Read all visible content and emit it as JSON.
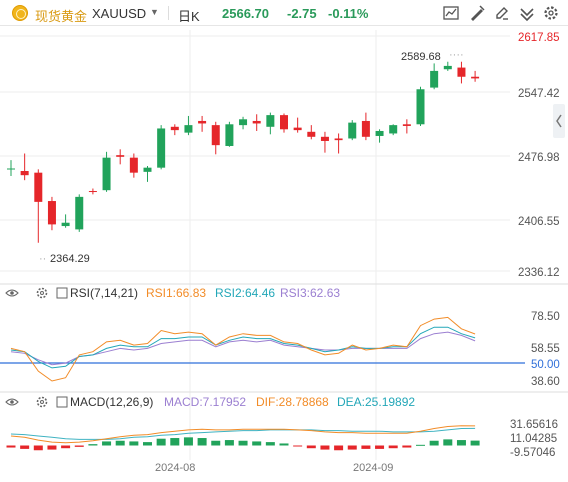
{
  "toolbar": {
    "name": "现货黄金",
    "symbol": "XAUUSD",
    "period": "日K",
    "price": "2566.70",
    "change": "-2.75",
    "change_pct": "-0.11%",
    "icons": [
      "indicator-icon",
      "draw-icon",
      "edit-icon",
      "compare-icon",
      "settings-icon"
    ]
  },
  "colors": {
    "up": "#21a35b",
    "down": "#e5262a",
    "rsi1": "#f28c28",
    "rsi2": "#23a7b8",
    "rsi3": "#9b7fd1",
    "macd": "#f28c28",
    "dif": "#3fb3c2",
    "price_label": "#e5262a",
    "midline": "#2f6fd9"
  },
  "price_axis": [
    "2617.85",
    "2547.42",
    "2476.98",
    "2406.55",
    "2336.12"
  ],
  "annotations": {
    "high": "2589.68",
    "low": "2364.29"
  },
  "rsi_panel": {
    "title": "RSI(7,14,21)",
    "rsi1": "RSI1:66.83",
    "rsi2": "RSI2:64.46",
    "rsi3": "RSI3:62.63",
    "axis": [
      "78.50",
      "58.55",
      "50.00",
      "38.60"
    ]
  },
  "macd_panel": {
    "title": "MACD(12,26,9)",
    "macd": "MACD:7.17952",
    "dif": "DIF:28.78868",
    "dea": "DEA:25.19892",
    "axis": [
      "31.65616",
      "11.04285",
      "-9.57046"
    ]
  },
  "date_axis": [
    "2024-08",
    "2024-09"
  ],
  "chart_data": {
    "type": "candlestick",
    "price_range": [
      2336.12,
      2617.85
    ],
    "candles": [
      {
        "o": 2458,
        "h": 2469,
        "l": 2450,
        "c": 2459
      },
      {
        "o": 2456,
        "h": 2477,
        "l": 2445,
        "c": 2451
      },
      {
        "o": 2454,
        "h": 2458,
        "l": 2370,
        "c": 2419
      },
      {
        "o": 2420,
        "h": 2425,
        "l": 2385,
        "c": 2392
      },
      {
        "o": 2390,
        "h": 2404,
        "l": 2388,
        "c": 2394
      },
      {
        "o": 2386,
        "h": 2428,
        "l": 2383,
        "c": 2425
      },
      {
        "o": 2432,
        "h": 2435,
        "l": 2428,
        "c": 2431
      },
      {
        "o": 2433,
        "h": 2479,
        "l": 2431,
        "c": 2472
      },
      {
        "o": 2475,
        "h": 2482,
        "l": 2464,
        "c": 2473
      },
      {
        "o": 2472,
        "h": 2477,
        "l": 2448,
        "c": 2454
      },
      {
        "o": 2455,
        "h": 2462,
        "l": 2443,
        "c": 2460
      },
      {
        "o": 2460,
        "h": 2511,
        "l": 2458,
        "c": 2507
      },
      {
        "o": 2509,
        "h": 2512,
        "l": 2499,
        "c": 2505
      },
      {
        "o": 2502,
        "h": 2522,
        "l": 2499,
        "c": 2511
      },
      {
        "o": 2516,
        "h": 2522,
        "l": 2503,
        "c": 2513
      },
      {
        "o": 2511,
        "h": 2515,
        "l": 2476,
        "c": 2487
      },
      {
        "o": 2486,
        "h": 2515,
        "l": 2485,
        "c": 2512
      },
      {
        "o": 2511,
        "h": 2521,
        "l": 2506,
        "c": 2518
      },
      {
        "o": 2516,
        "h": 2524,
        "l": 2504,
        "c": 2513
      },
      {
        "o": 2509,
        "h": 2526,
        "l": 2500,
        "c": 2523
      },
      {
        "o": 2523,
        "h": 2525,
        "l": 2502,
        "c": 2506
      },
      {
        "o": 2508,
        "h": 2520,
        "l": 2502,
        "c": 2505
      },
      {
        "o": 2503,
        "h": 2511,
        "l": 2494,
        "c": 2497
      },
      {
        "o": 2497,
        "h": 2503,
        "l": 2478,
        "c": 2492
      },
      {
        "o": 2495,
        "h": 2501,
        "l": 2477,
        "c": 2493
      },
      {
        "o": 2495,
        "h": 2517,
        "l": 2493,
        "c": 2514
      },
      {
        "o": 2516,
        "h": 2526,
        "l": 2493,
        "c": 2497
      },
      {
        "o": 2498,
        "h": 2506,
        "l": 2490,
        "c": 2504
      },
      {
        "o": 2501,
        "h": 2512,
        "l": 2499,
        "c": 2511
      },
      {
        "o": 2512,
        "h": 2518,
        "l": 2501,
        "c": 2510
      },
      {
        "o": 2512,
        "h": 2557,
        "l": 2510,
        "c": 2554
      },
      {
        "o": 2556,
        "h": 2585,
        "l": 2554,
        "c": 2576
      },
      {
        "o": 2578,
        "h": 2587,
        "l": 2576,
        "c": 2582
      },
      {
        "o": 2580,
        "h": 2587,
        "l": 2561,
        "c": 2569
      },
      {
        "o": 2569,
        "h": 2576,
        "l": 2563,
        "c": 2567
      }
    ],
    "rsi_range": [
      38.6,
      78.5
    ],
    "rsi1": [
      58,
      56,
      44,
      38,
      40,
      54,
      56,
      62,
      63,
      60,
      61,
      69,
      67,
      68,
      67,
      60,
      65,
      67,
      66,
      66,
      62,
      61,
      57,
      54,
      55,
      60,
      57,
      58,
      60,
      59,
      72,
      76,
      77,
      70,
      66.83
    ],
    "rsi2": [
      57,
      56,
      50,
      46,
      47,
      53,
      54,
      58,
      60,
      59,
      59,
      64,
      64,
      65,
      65,
      60,
      63,
      65,
      64,
      64,
      61,
      60,
      58,
      56,
      57,
      59,
      58,
      58,
      59,
      59,
      67,
      71,
      71,
      67,
      64.46
    ],
    "rsi3": [
      56,
      55,
      51,
      48,
      49,
      53,
      54,
      56,
      58,
      57,
      58,
      61,
      62,
      63,
      63,
      59,
      62,
      63,
      62,
      63,
      60,
      59,
      58,
      57,
      57,
      58,
      58,
      58,
      58,
      58,
      64,
      67,
      68,
      66,
      62.63
    ],
    "macd_range": [
      -9.57046,
      31.65616
    ],
    "macd": [
      -3,
      -5,
      -7,
      -6,
      -4,
      -2,
      2,
      6,
      7,
      6,
      5,
      10,
      11,
      12,
      11,
      7,
      8,
      7,
      6,
      5,
      3,
      -1,
      -4,
      -6,
      -7,
      -6,
      -5,
      -5,
      -4,
      -3,
      1,
      7,
      9,
      8,
      7.17952
    ],
    "dif": [
      14,
      12,
      8,
      5,
      4,
      5,
      7,
      10,
      13,
      15,
      16,
      19,
      21,
      23,
      24,
      23,
      23,
      24,
      24,
      24,
      24,
      23,
      22,
      20,
      19,
      19,
      18,
      18,
      18,
      18,
      21,
      25,
      28,
      29,
      28.78868
    ],
    "dea": [
      17,
      16,
      14,
      12,
      10,
      9,
      9,
      9,
      10,
      12,
      13,
      15,
      16,
      18,
      19,
      20,
      21,
      22,
      22,
      23,
      23,
      23,
      23,
      22,
      22,
      21,
      21,
      21,
      20,
      20,
      20,
      21,
      23,
      25,
      25.19892
    ]
  }
}
